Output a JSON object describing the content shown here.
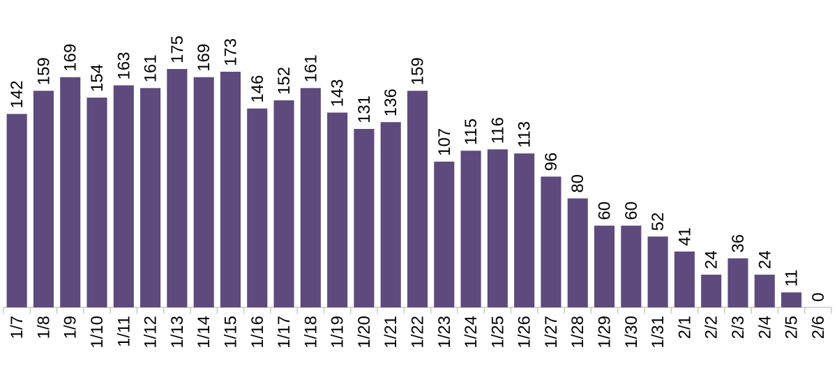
{
  "chart_data": {
    "type": "bar",
    "categories": [
      "1/7",
      "1/8",
      "1/9",
      "1/10",
      "1/11",
      "1/12",
      "1/13",
      "1/14",
      "1/15",
      "1/16",
      "1/17",
      "1/18",
      "1/19",
      "1/20",
      "1/21",
      "1/22",
      "1/23",
      "1/24",
      "1/25",
      "1/26",
      "1/27",
      "1/28",
      "1/29",
      "1/30",
      "1/31",
      "2/1",
      "2/2",
      "2/3",
      "2/4",
      "2/5",
      "2/6"
    ],
    "values": [
      142,
      159,
      169,
      154,
      163,
      161,
      175,
      169,
      173,
      146,
      152,
      161,
      143,
      131,
      136,
      159,
      107,
      115,
      116,
      113,
      96,
      80,
      60,
      60,
      52,
      41,
      24,
      36,
      24,
      11,
      0
    ],
    "data_labels": [
      "142",
      "159",
      "169",
      "154",
      "163",
      "161",
      "175",
      "169",
      "173",
      "146",
      "152",
      "161",
      "143",
      "131",
      "136",
      "159",
      "107",
      "115",
      "116",
      "113",
      "96",
      "80",
      "60",
      "60",
      "52",
      "41",
      "24",
      "36",
      "24",
      "11",
      "0"
    ],
    "ylim": [
      0,
      175
    ],
    "grid": false,
    "legend": "none",
    "bar_color": "#5e4a7d",
    "axis_color": "#c8c8c8"
  }
}
